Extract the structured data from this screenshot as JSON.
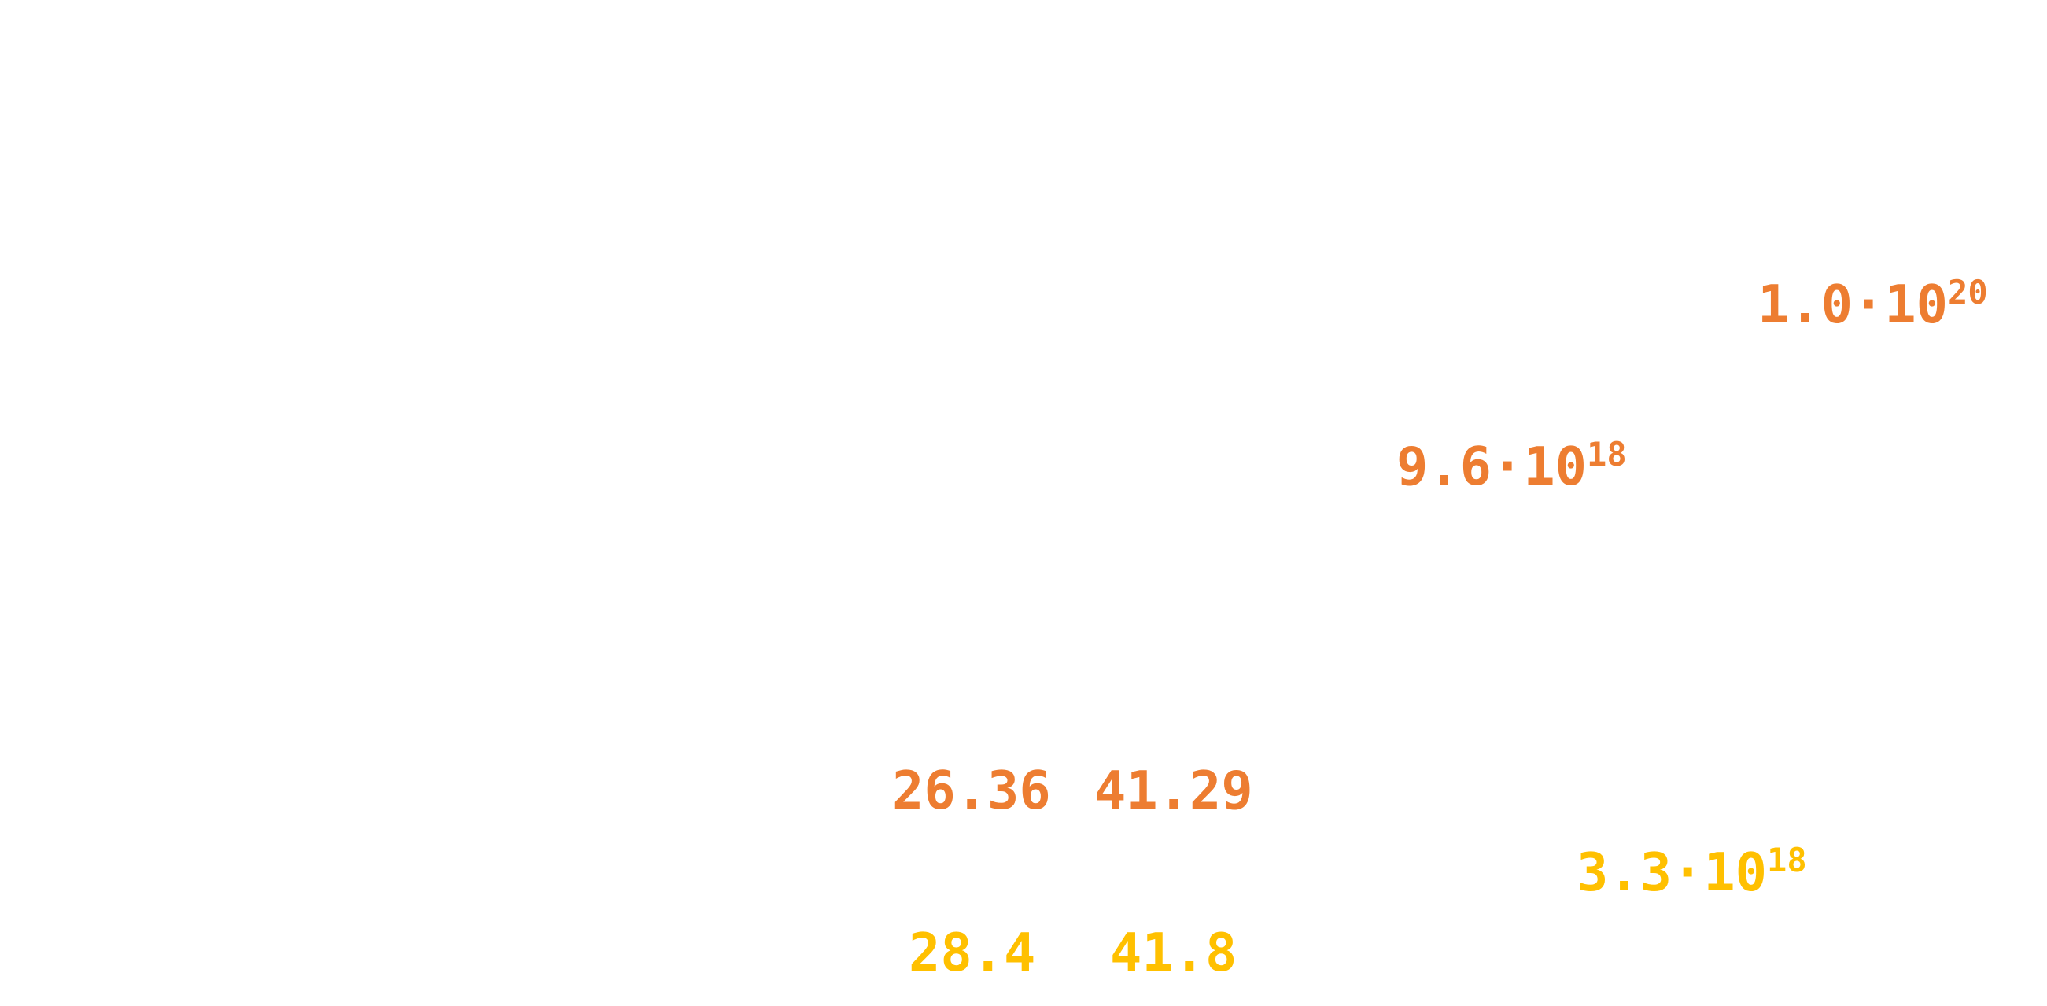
{
  "colors": {
    "orange": "#ed7d31",
    "gold": "#ffc000"
  },
  "labels": {
    "sci_top": {
      "mantissa": "1.0·10",
      "exponent": "20"
    },
    "sci_mid": {
      "mantissa": "9.6·10",
      "exponent": "18"
    },
    "value_a": "26.36",
    "value_b": "41.29",
    "sci_gold": {
      "mantissa": "3.3·10",
      "exponent": "18"
    },
    "value_c": "28.4",
    "value_d": "41.8"
  }
}
